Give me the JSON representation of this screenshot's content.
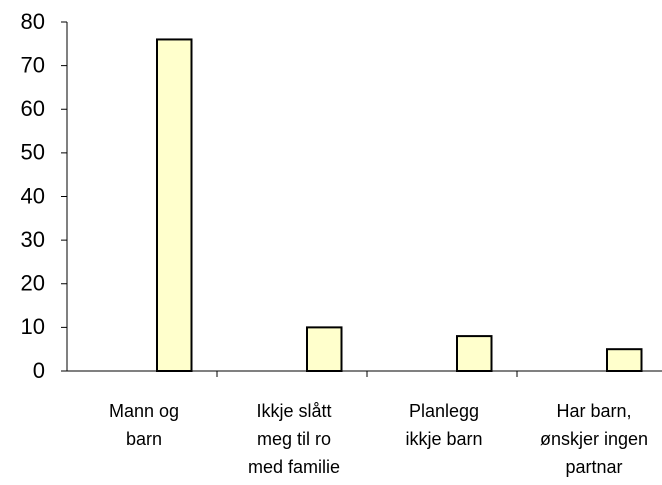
{
  "chart_data": {
    "type": "bar",
    "categories": [
      [
        "Mann og",
        "barn"
      ],
      [
        "Ikkje slått",
        "meg til ro",
        "med familie"
      ],
      [
        "Planlegg",
        "ikkje barn"
      ],
      [
        "Har barn,",
        "ønskjer ingen",
        "partnar"
      ]
    ],
    "values": [
      76,
      10,
      8,
      5
    ],
    "color": "#ffffcc",
    "ylim": [
      0,
      80
    ],
    "yticks": [
      0,
      10,
      20,
      30,
      40,
      50,
      60,
      70,
      80
    ],
    "grid": false
  }
}
